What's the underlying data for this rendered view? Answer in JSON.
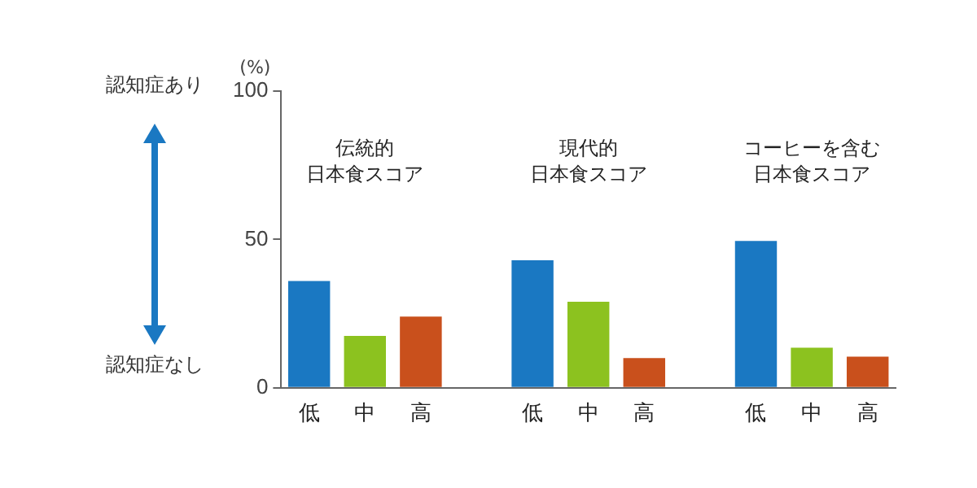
{
  "chart_data": {
    "type": "bar",
    "ylabel": "(%)",
    "categories": [
      "低",
      "中",
      "高",
      null,
      "低",
      "中",
      "高",
      null,
      "低",
      "中",
      "高"
    ],
    "values": [
      36,
      17.5,
      24,
      null,
      43,
      29,
      10,
      null,
      49.5,
      13.5,
      10.5
    ],
    "colors": [
      "#1a78c2",
      "#8cc21f",
      "#c9501c",
      null,
      "#1a78c2",
      "#8cc21f",
      "#c9501c",
      null,
      "#1a78c2",
      "#8cc21f",
      "#c9501c"
    ],
    "ylim": [
      0,
      100
    ],
    "yticks": [
      0,
      50,
      100
    ],
    "grid": false,
    "legend": false,
    "annotations": [
      "伝統的",
      "日本食スコア",
      "現代的",
      "日本食スコア",
      "コーヒーを含む",
      "日本食スコア",
      "認知症あり",
      "認知症なし"
    ]
  }
}
